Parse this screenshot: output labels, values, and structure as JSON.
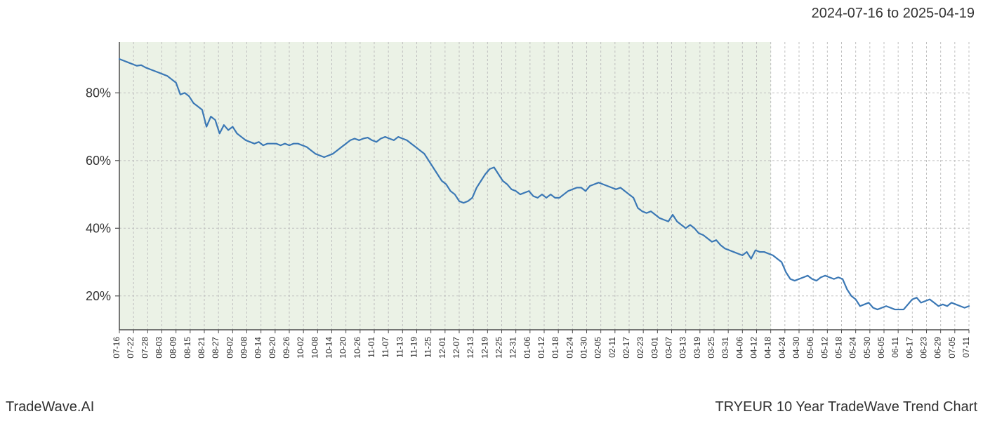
{
  "header": {
    "date_range": "2024-07-16 to 2025-04-19"
  },
  "footer": {
    "left": "TradeWave.AI",
    "right": "TRYEUR 10 Year TradeWave Trend Chart"
  },
  "chart": {
    "type": "line",
    "background_color": "#ffffff",
    "plot_background_shaded": "#e8f0e2",
    "shaded_region_opacity": 0.85,
    "grid_color": "#bfbfbf",
    "grid_dash": "3,3",
    "axis_color": "#4d4d4d",
    "line_color": "#3b78b5",
    "line_width": 2.2,
    "title_fontsize": 20,
    "ytick_fontsize": 18,
    "xtick_fontsize": 12,
    "text_color": "#333333",
    "ylim": [
      10,
      95
    ],
    "yticks": [
      20,
      40,
      60,
      80
    ],
    "ytick_labels": [
      "20%",
      "40%",
      "60%",
      "80%"
    ],
    "xtick_labels": [
      "07-16",
      "07-22",
      "07-28",
      "08-03",
      "08-09",
      "08-15",
      "08-21",
      "08-27",
      "09-02",
      "09-08",
      "09-14",
      "09-20",
      "09-26",
      "10-02",
      "10-08",
      "10-14",
      "10-20",
      "10-26",
      "11-01",
      "11-07",
      "11-13",
      "11-19",
      "11-25",
      "12-01",
      "12-07",
      "12-13",
      "12-19",
      "12-25",
      "12-31",
      "01-06",
      "01-12",
      "01-18",
      "01-24",
      "01-30",
      "02-05",
      "02-11",
      "02-17",
      "02-23",
      "03-01",
      "03-07",
      "03-13",
      "03-19",
      "03-25",
      "03-31",
      "04-06",
      "04-12",
      "04-18",
      "04-24",
      "04-30",
      "05-06",
      "05-12",
      "05-18",
      "05-24",
      "05-30",
      "06-05",
      "06-11",
      "06-17",
      "06-23",
      "06-29",
      "07-05",
      "07-11"
    ],
    "shaded_region_start_tick": 0,
    "shaded_region_end_tick": 46,
    "series": [
      90,
      89.5,
      89,
      88.5,
      88,
      88.2,
      87.5,
      87,
      86.5,
      86,
      85.5,
      85,
      84,
      83,
      79.5,
      80,
      79,
      77,
      76,
      75,
      70,
      73,
      72,
      68,
      70.5,
      69,
      70,
      68,
      67,
      66,
      65.5,
      65,
      65.5,
      64.5,
      65,
      65,
      65,
      64.5,
      65,
      64.5,
      65,
      65,
      64.5,
      64,
      63,
      62,
      61.5,
      61,
      61.5,
      62,
      63,
      64,
      65,
      66,
      66.5,
      66,
      66.5,
      66.8,
      66,
      65.5,
      66.5,
      67,
      66.5,
      66,
      67,
      66.5,
      66,
      65,
      64,
      63,
      62,
      60,
      58,
      56,
      54,
      53,
      51,
      50,
      48,
      47.5,
      48,
      49,
      52,
      54,
      56,
      57.5,
      58,
      56,
      54,
      53,
      51.5,
      51,
      50,
      50.5,
      51,
      49.5,
      49,
      50,
      49,
      50,
      49,
      49,
      50,
      51,
      51.5,
      52,
      52,
      51,
      52.5,
      53,
      53.5,
      53,
      52.5,
      52,
      51.5,
      52,
      51,
      50,
      49,
      46,
      45,
      44.5,
      45,
      44,
      43,
      42.5,
      42,
      44,
      42,
      41,
      40,
      41,
      40,
      38.5,
      38,
      37,
      36,
      36.5,
      35,
      34,
      33.5,
      33,
      32.5,
      32,
      33,
      31,
      33.5,
      33,
      33,
      32.5,
      32,
      31,
      30,
      27,
      25,
      24.5,
      25,
      25.5,
      26,
      25,
      24.5,
      25.5,
      26,
      25.5,
      25,
      25.5,
      25,
      22,
      20,
      19,
      17,
      17.5,
      18,
      16.5,
      16,
      16.5,
      17,
      16.5,
      16,
      16,
      16,
      17.5,
      19,
      19.5,
      18,
      18.5,
      19,
      18,
      17,
      17.5,
      17,
      18,
      17.5,
      17,
      16.5,
      17
    ]
  }
}
